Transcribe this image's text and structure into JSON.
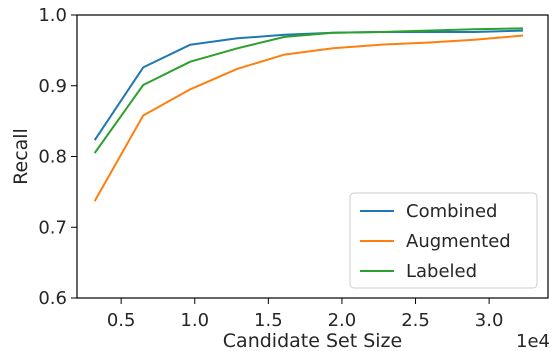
{
  "chart_data": {
    "type": "line",
    "xlabel": "Candidate Set Size",
    "ylabel": "Recall",
    "x_offset_label": "1e4",
    "xlim": [
      0.2,
      3.4
    ],
    "ylim": [
      0.6,
      1.0
    ],
    "xticks": [
      0.5,
      1.0,
      1.5,
      2.0,
      2.5,
      3.0
    ],
    "xtick_labels": [
      "0.5",
      "1.0",
      "1.5",
      "2.0",
      "2.5",
      "3.0"
    ],
    "yticks": [
      0.6,
      0.7,
      0.8,
      0.9,
      1.0
    ],
    "ytick_labels": [
      "0.6",
      "0.7",
      "0.8",
      "0.9",
      "1.0"
    ],
    "legend_position": "lower-right",
    "series": [
      {
        "name": "Combined",
        "color": "#1f77b4",
        "x": [
          0.32,
          0.65,
          0.97,
          1.29,
          1.61,
          1.94,
          2.26,
          2.58,
          2.9,
          3.23
        ],
        "y": [
          0.823,
          0.926,
          0.958,
          0.967,
          0.972,
          0.975,
          0.976,
          0.976,
          0.976,
          0.978
        ]
      },
      {
        "name": "Augmented",
        "color": "#ff7f0e",
        "x": [
          0.32,
          0.65,
          0.97,
          1.29,
          1.61,
          1.94,
          2.26,
          2.58,
          2.9,
          3.23
        ],
        "y": [
          0.737,
          0.858,
          0.895,
          0.924,
          0.944,
          0.953,
          0.958,
          0.961,
          0.965,
          0.971
        ]
      },
      {
        "name": "Labeled",
        "color": "#2ca02c",
        "x": [
          0.32,
          0.65,
          0.97,
          1.29,
          1.61,
          1.94,
          2.26,
          2.58,
          2.9,
          3.23
        ],
        "y": [
          0.805,
          0.901,
          0.934,
          0.953,
          0.969,
          0.975,
          0.976,
          0.978,
          0.98,
          0.981
        ]
      }
    ]
  }
}
